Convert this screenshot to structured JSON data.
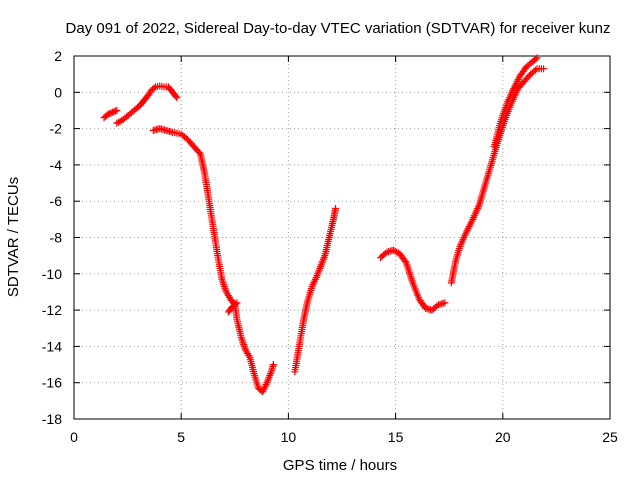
{
  "chart_data": {
    "type": "scatter",
    "title": "Day 091 of 2022, Sidereal Day-to-day VTEC variation (SDTVAR) for receiver kunz",
    "xlabel": "GPS time / hours",
    "ylabel": "SDTVAR / TECUs",
    "xlim": [
      0,
      25
    ],
    "ylim": [
      -18,
      2
    ],
    "xticks": [
      0,
      5,
      10,
      15,
      20,
      25
    ],
    "yticks": [
      -18,
      -16,
      -14,
      -12,
      -10,
      -8,
      -6,
      -4,
      -2,
      0,
      2
    ],
    "grid": true,
    "marker": "+",
    "series_color": "#ff0000",
    "series": [
      {
        "name": "track-1",
        "x": [
          1.4,
          1.6,
          1.8,
          2.0
        ],
        "y": [
          -1.4,
          -1.2,
          -1.1,
          -1.0
        ]
      },
      {
        "name": "track-2",
        "x": [
          2.0,
          2.3,
          2.6,
          2.9,
          3.1,
          3.3,
          3.5,
          3.6,
          3.8,
          4.0,
          4.2,
          4.4,
          4.6,
          4.8
        ],
        "y": [
          -1.7,
          -1.5,
          -1.2,
          -0.9,
          -0.7,
          -0.4,
          -0.1,
          0.1,
          0.3,
          0.35,
          0.3,
          0.3,
          0.0,
          -0.3
        ]
      },
      {
        "name": "track-3",
        "x": [
          3.7,
          4.0,
          4.3,
          4.6,
          5.0,
          5.3,
          5.6,
          5.9,
          6.1,
          6.3,
          6.5,
          6.7,
          6.9,
          7.1,
          7.3,
          7.5,
          7.6,
          7.8,
          8.0,
          8.2,
          8.4,
          8.6,
          8.8,
          9.0,
          9.2,
          9.3
        ],
        "y": [
          -2.1,
          -2.0,
          -2.1,
          -2.2,
          -2.3,
          -2.6,
          -3.0,
          -3.4,
          -4.5,
          -6.0,
          -7.5,
          -9.0,
          -10.3,
          -11.0,
          -11.4,
          -11.7,
          -12.5,
          -13.5,
          -14.2,
          -14.6,
          -15.5,
          -16.3,
          -16.5,
          -16.0,
          -15.4,
          -15.0
        ]
      },
      {
        "name": "track-4",
        "x": [
          7.2,
          7.4,
          7.6
        ],
        "y": [
          -12.1,
          -11.8,
          -11.6
        ]
      },
      {
        "name": "track-5",
        "x": [
          10.3,
          10.5,
          10.7,
          10.9,
          11.1,
          11.3,
          11.5,
          11.7,
          11.9,
          12.1,
          12.2
        ],
        "y": [
          -15.4,
          -14.0,
          -12.6,
          -11.5,
          -10.7,
          -10.2,
          -9.6,
          -9.0,
          -8.0,
          -7.0,
          -6.4
        ]
      },
      {
        "name": "track-6",
        "x": [
          14.3,
          14.6,
          14.9,
          15.2,
          15.5,
          15.8,
          16.1,
          16.4,
          16.7,
          17.0,
          17.3
        ],
        "y": [
          -9.1,
          -8.8,
          -8.7,
          -8.9,
          -9.4,
          -10.5,
          -11.4,
          -11.9,
          -12.0,
          -11.7,
          -11.6
        ]
      },
      {
        "name": "track-7",
        "x": [
          17.6,
          17.8,
          18.0,
          18.3,
          18.6,
          18.9,
          19.2,
          19.5,
          19.8,
          20.1,
          20.4,
          20.7,
          21.0,
          21.3,
          21.6,
          21.9
        ],
        "y": [
          -10.5,
          -9.3,
          -8.5,
          -7.7,
          -7.0,
          -6.2,
          -5.0,
          -3.8,
          -2.6,
          -1.5,
          -0.6,
          0.2,
          0.6,
          1.0,
          1.3,
          1.3
        ]
      },
      {
        "name": "track-8",
        "x": [
          19.6,
          19.9,
          20.2,
          20.5,
          20.8,
          21.1,
          21.4,
          21.6
        ],
        "y": [
          -3.0,
          -1.6,
          -0.6,
          0.2,
          0.9,
          1.4,
          1.7,
          1.9
        ]
      }
    ]
  }
}
